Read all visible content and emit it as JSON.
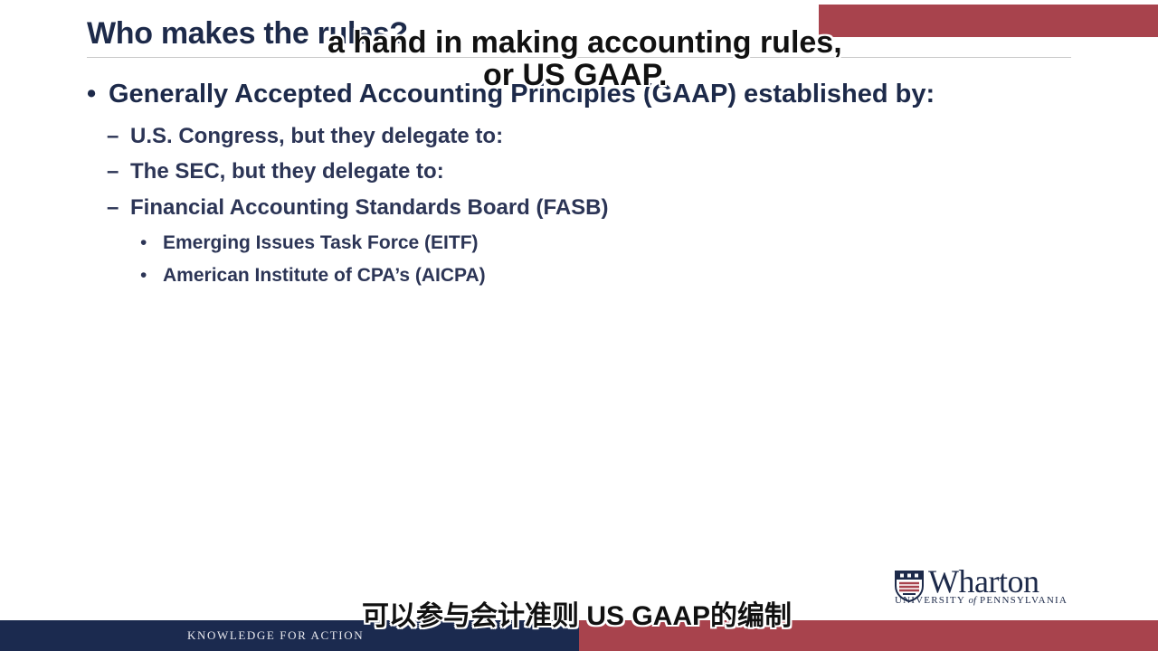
{
  "slide": {
    "title": "Who makes the rules?",
    "bullets": [
      {
        "level": 1,
        "marker": "•",
        "text": "Generally Accepted Accounting Principles (GAAP) established by:"
      },
      {
        "level": 2,
        "marker": "–",
        "text": "U.S. Congress, but they delegate to:"
      },
      {
        "level": 2,
        "marker": "–",
        "text": "The SEC, but they delegate to:"
      },
      {
        "level": 2,
        "marker": "–",
        "text": "Financial Accounting Standards Board (FASB)"
      },
      {
        "level": 3,
        "marker": "•",
        "text": "Emerging Issues Task Force (EITF)"
      },
      {
        "level": 3,
        "marker": "•",
        "text": "American Institute of CPA’s (AICPA)"
      }
    ]
  },
  "captions": {
    "english_line_1": "a hand in making accounting rules,",
    "english_line_2": "or US GAAP.",
    "chinese": "可以参与会计准则 US GAAP的编制"
  },
  "logo": {
    "name": "Wharton",
    "sub_university": "UNIVERSITY ",
    "sub_of": "of",
    "sub_penn": " PENNSYLVANIA"
  },
  "footer": {
    "tagline": "KNOWLEDGE FOR ACTION"
  },
  "colors": {
    "navy": "#1b2a4f",
    "crimson": "#a8434d",
    "text": "#1d2a4a"
  }
}
